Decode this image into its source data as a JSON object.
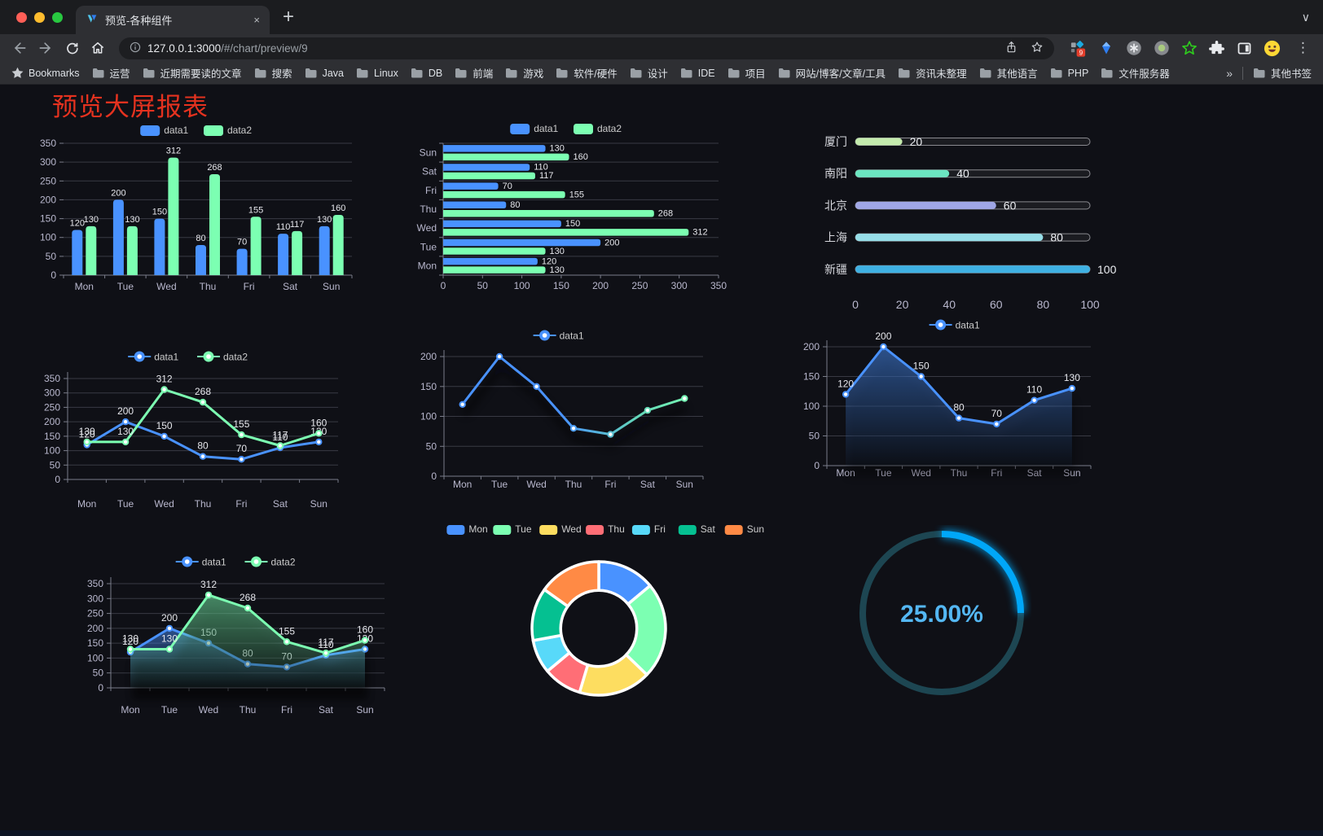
{
  "window": {
    "tab_title": "预览-各种组件",
    "tab_close_glyph": "×",
    "new_tab_glyph": "+",
    "tab_search_glyph": "∨",
    "url_host": "127.0.0.1:3000",
    "url_path": "/#/chart/preview/9",
    "extension_badge": "9",
    "menu_glyph": "⋮",
    "bookmarks_root_label": "Bookmarks",
    "bookmark_folders": [
      "运营",
      "近期需要读的文章",
      "搜索",
      "Java",
      "Linux",
      "DB",
      "前端",
      "游戏",
      "软件/硬件",
      "设计",
      "IDE",
      "项目",
      "网站/博客/文章/工具",
      "资讯未整理",
      "其他语言",
      "PHP",
      "文件服务器"
    ],
    "bookmarks_overflow_glyph": "»",
    "other_bookmarks_label": "其他书签"
  },
  "page": {
    "title": "预览大屏报表",
    "title_color": "#e5321f",
    "background": "#0f1016"
  },
  "palette": {
    "data1": "#4992ff",
    "data2": "#7cffb2",
    "axis_label": "#b9b8ce",
    "grid_line": "#393a44",
    "axis_line": "#7a7d8a",
    "value_label": "#e6e7ec",
    "legend_label": "#cccccc"
  },
  "chart_data": [
    {
      "id": "bar-vertical-grouped",
      "type": "bar",
      "orientation": "vertical",
      "legend": [
        "data1",
        "data2"
      ],
      "categories": [
        "Mon",
        "Tue",
        "Wed",
        "Thu",
        "Fri",
        "Sat",
        "Sun"
      ],
      "series": [
        {
          "name": "data1",
          "color": "#4992ff",
          "values": [
            120,
            200,
            150,
            80,
            70,
            110,
            130
          ]
        },
        {
          "name": "data2",
          "color": "#7cffb2",
          "values": [
            130,
            130,
            312,
            268,
            155,
            117,
            160
          ]
        }
      ],
      "ylim": [
        0,
        350
      ],
      "ytick_step": 50,
      "show_labels": true,
      "legend_position": "top"
    },
    {
      "id": "bar-horizontal-grouped",
      "type": "bar",
      "orientation": "horizontal",
      "legend": [
        "data1",
        "data2"
      ],
      "categories_bottom_to_top": [
        "Mon",
        "Tue",
        "Wed",
        "Thu",
        "Fri",
        "Sat",
        "Sun"
      ],
      "series": [
        {
          "name": "data1",
          "color": "#4992ff",
          "values": [
            120,
            200,
            150,
            80,
            70,
            110,
            130
          ]
        },
        {
          "name": "data2",
          "color": "#7cffb2",
          "values": [
            130,
            130,
            312,
            268,
            155,
            117,
            160
          ]
        }
      ],
      "xlim": [
        0,
        350
      ],
      "xtick_step": 50,
      "show_labels": true,
      "legend_position": "top"
    },
    {
      "id": "capsule-progress-bars",
      "type": "bar",
      "subtype": "capsule-progress",
      "categories": [
        "厦门",
        "南阳",
        "北京",
        "上海",
        "新疆"
      ],
      "values": [
        20,
        40,
        60,
        80,
        100
      ],
      "colors": [
        "#c4ebad",
        "#6be6c1",
        "#a0a7e6",
        "#96dee8",
        "#3fb1e3"
      ],
      "xlim": [
        0,
        100
      ],
      "xticks": [
        0,
        20,
        40,
        60,
        80,
        100
      ],
      "show_labels": true
    },
    {
      "id": "line-two-series",
      "type": "line",
      "legend": [
        "data1",
        "data2"
      ],
      "categories": [
        "Mon",
        "Tue",
        "Wed",
        "Thu",
        "Fri",
        "Sat",
        "Sun"
      ],
      "series": [
        {
          "name": "data1",
          "color": "#4992ff",
          "values": [
            120,
            200,
            150,
            80,
            70,
            110,
            130
          ]
        },
        {
          "name": "data2",
          "color": "#7cffb2",
          "values": [
            130,
            130,
            312,
            268,
            155,
            117,
            160
          ]
        }
      ],
      "ylim": [
        0,
        350
      ],
      "ytick_step": 50,
      "show_labels": true
    },
    {
      "id": "line-gradient",
      "type": "line",
      "legend": [
        "data1"
      ],
      "categories": [
        "Mon",
        "Tue",
        "Wed",
        "Thu",
        "Fri",
        "Sat",
        "Sun"
      ],
      "series": [
        {
          "name": "data1",
          "gradient": [
            "#4992ff",
            "#7cffb2"
          ],
          "values": [
            120,
            200,
            150,
            80,
            70,
            110,
            130
          ],
          "shadow": true
        }
      ],
      "ylim": [
        0,
        200
      ],
      "ytick_step": 50,
      "show_labels": false
    },
    {
      "id": "line-area",
      "type": "line",
      "legend": [
        "data1"
      ],
      "categories": [
        "Mon",
        "Tue",
        "Wed",
        "Thu",
        "Fri",
        "Sat",
        "Sun"
      ],
      "series": [
        {
          "name": "data1",
          "color": "#4992ff",
          "values": [
            120,
            200,
            150,
            80,
            70,
            110,
            130
          ],
          "area": true
        }
      ],
      "ylim": [
        0,
        200
      ],
      "ytick_step": 50,
      "show_labels": true
    },
    {
      "id": "line-two-series-area",
      "type": "line",
      "legend": [
        "data1",
        "data2"
      ],
      "categories": [
        "Mon",
        "Tue",
        "Wed",
        "Thu",
        "Fri",
        "Sat",
        "Sun"
      ],
      "series": [
        {
          "name": "data1",
          "color": "#4992ff",
          "values": [
            120,
            200,
            150,
            80,
            70,
            110,
            130
          ],
          "area": true
        },
        {
          "name": "data2",
          "color": "#7cffb2",
          "values": [
            130,
            130,
            312,
            268,
            155,
            117,
            160
          ],
          "area": true
        }
      ],
      "ylim": [
        0,
        350
      ],
      "ytick_step": 50,
      "show_labels": true
    },
    {
      "id": "donut",
      "type": "pie",
      "inner_radius_ratio": 0.57,
      "start_angle_deg": -90,
      "clockwise": true,
      "border_color": "#ffffff",
      "categories": [
        "Mon",
        "Tue",
        "Wed",
        "Thu",
        "Fri",
        "Sat",
        "Sun"
      ],
      "values": [
        120,
        200,
        150,
        80,
        70,
        110,
        130
      ],
      "colors": [
        "#4992ff",
        "#7cffb2",
        "#fddd60",
        "#ff6e76",
        "#58d9f9",
        "#05c091",
        "#ff8a45"
      ],
      "legend_position": "top"
    },
    {
      "id": "progress-ring",
      "type": "gauge",
      "value_percent": 25,
      "label": "25.00%",
      "progress_color": "#00a7f8",
      "track_color": "#1d4652",
      "text_color": "#54b7f3"
    }
  ]
}
